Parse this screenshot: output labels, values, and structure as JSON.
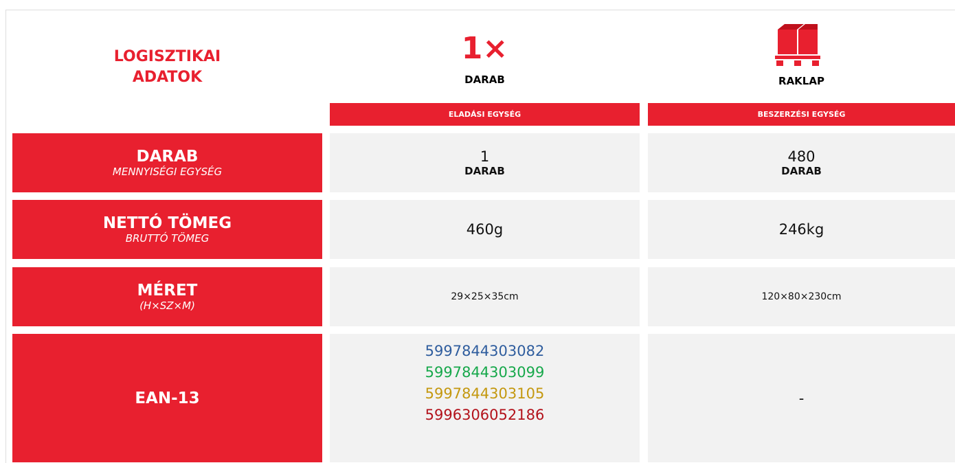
{
  "header": {
    "title_lines": [
      "LOGISZTIKAI",
      "ADATOK"
    ],
    "columns": [
      {
        "icon": "1×",
        "label": "DARAB",
        "unit": "ELADÁSI EGYSÉG"
      },
      {
        "label": "RAKLAP",
        "unit": "BESZERZÉSI EGYSÉG"
      }
    ]
  },
  "rows": [
    {
      "label": "DARAB",
      "sub": "MENNYISÉGI EGYSÉG",
      "cells": [
        {
          "value": "1",
          "unit": "DARAB"
        },
        {
          "value": "480",
          "unit": "DARAB"
        }
      ]
    },
    {
      "label": "NETTÓ TÖMEG",
      "sub": "BRUTTÓ TÖMEG",
      "cells": [
        {
          "value": "460g"
        },
        {
          "value": "246kg"
        }
      ]
    },
    {
      "label": "MÉRET",
      "sub": "(H×SZ×M)",
      "cells": [
        {
          "small": "29×25×35cm"
        },
        {
          "small": "120×80×230cm"
        }
      ]
    }
  ],
  "ean": {
    "label": "EAN-13",
    "codes": [
      {
        "text": "5997844303082",
        "color": "#2f5d9e"
      },
      {
        "text": "5997844303099",
        "color": "#17a84b"
      },
      {
        "text": "5997844303105",
        "color": "#c4980f"
      },
      {
        "text": "5996306052186",
        "color": "#b3121b"
      }
    ],
    "other": "-"
  }
}
